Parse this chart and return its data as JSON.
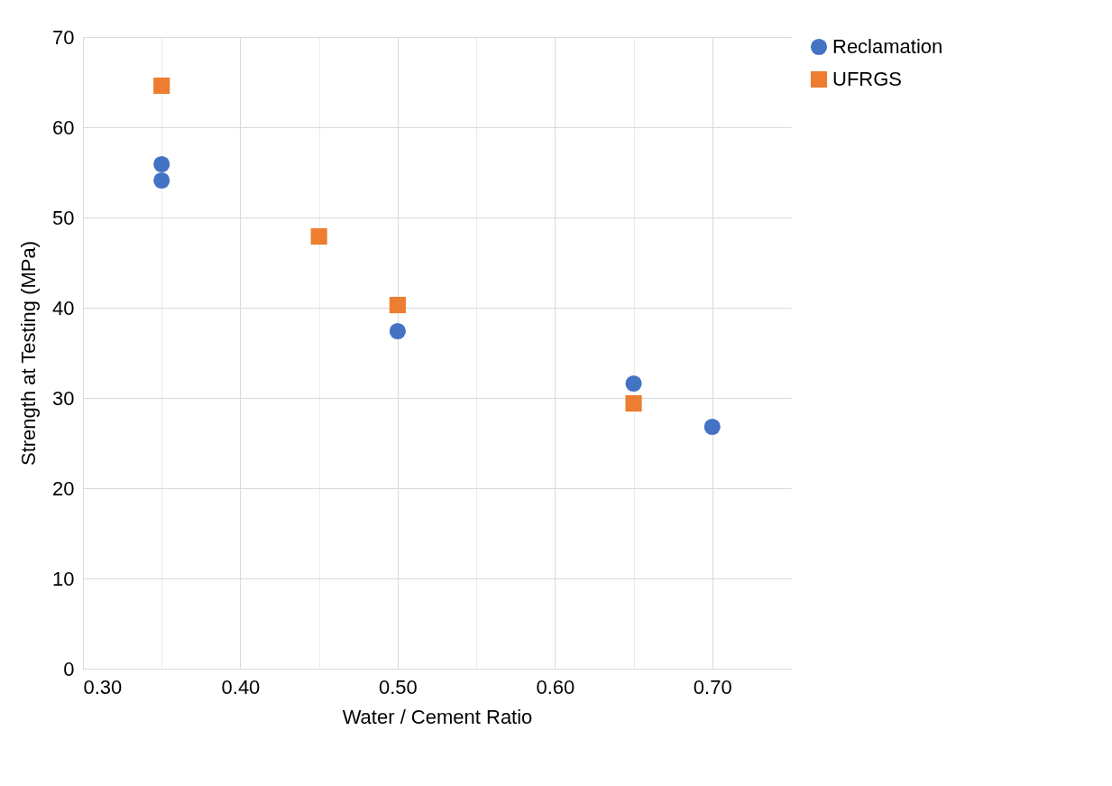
{
  "chart_data": {
    "type": "scatter",
    "xlabel": "Water / Cement Ratio",
    "ylabel": "Strength at Testing (MPa)",
    "xlim": [
      0.3,
      0.75
    ],
    "ylim": [
      0,
      70
    ],
    "xticks": [
      {
        "value": 0.3,
        "label": "0.30"
      },
      {
        "value": 0.35,
        "label": null
      },
      {
        "value": 0.4,
        "label": "0.40"
      },
      {
        "value": 0.45,
        "label": null
      },
      {
        "value": 0.5,
        "label": "0.50"
      },
      {
        "value": 0.55,
        "label": null
      },
      {
        "value": 0.6,
        "label": "0.60"
      },
      {
        "value": 0.65,
        "label": null
      },
      {
        "value": 0.7,
        "label": "0.70"
      }
    ],
    "yticks": [
      0,
      10,
      20,
      30,
      40,
      50,
      60,
      70
    ],
    "grid": true,
    "legend": "right",
    "series": [
      {
        "name": "Reclamation",
        "color": "#4472c4",
        "marker": "circle",
        "x": [
          0.35,
          0.35,
          0.5,
          0.65,
          0.7
        ],
        "values": [
          55.9,
          54.1,
          37.4,
          31.6,
          26.8
        ]
      },
      {
        "name": "UFRGS",
        "color": "#ed7d31",
        "marker": "square",
        "x": [
          0.35,
          0.45,
          0.5,
          0.65
        ],
        "values": [
          64.6,
          47.9,
          40.3,
          29.4
        ]
      }
    ]
  }
}
